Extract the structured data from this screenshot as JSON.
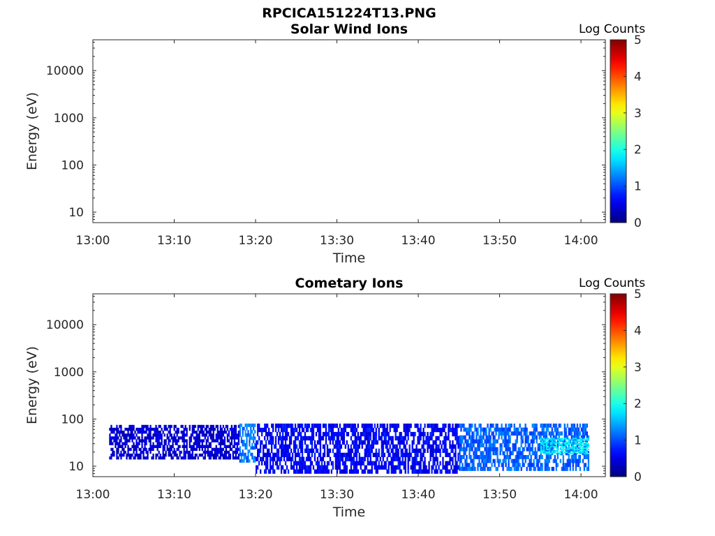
{
  "figure": {
    "title": "RPCICA151224T13.PNG"
  },
  "chart_data": [
    {
      "type": "heatmap",
      "title": "Solar Wind Ions",
      "xlabel": "Time",
      "ylabel": "Energy (eV)",
      "x_ticks": [
        "13:00",
        "13:10",
        "13:20",
        "13:30",
        "13:40",
        "13:50",
        "14:00"
      ],
      "xlim": [
        "13:00",
        "14:03"
      ],
      "y_scale": "log",
      "y_ticks": [
        "10",
        "100",
        "1000",
        "10000"
      ],
      "ylim": [
        6,
        45000
      ],
      "colorbar": {
        "label": "Log Counts",
        "ticks": [
          "0",
          "1",
          "2",
          "3",
          "4",
          "5"
        ],
        "range": [
          0,
          5
        ],
        "colormap": "jet"
      },
      "data_regions": []
    },
    {
      "type": "heatmap",
      "title": "Cometary Ions",
      "xlabel": "Time",
      "ylabel": "Energy (eV)",
      "x_ticks": [
        "13:00",
        "13:10",
        "13:20",
        "13:30",
        "13:40",
        "13:50",
        "14:00"
      ],
      "xlim": [
        "13:00",
        "14:03"
      ],
      "y_scale": "log",
      "y_ticks": [
        "10",
        "100",
        "1000",
        "10000"
      ],
      "ylim": [
        6,
        45000
      ],
      "colorbar": {
        "label": "Log Counts",
        "ticks": [
          "0",
          "1",
          "2",
          "3",
          "4",
          "5"
        ],
        "range": [
          0,
          5
        ],
        "colormap": "jet"
      },
      "data_regions": [
        {
          "start": "13:02",
          "end": "13:18",
          "e_min": 14,
          "e_max": 75,
          "log_counts": 0.4
        },
        {
          "start": "13:18",
          "end": "13:20",
          "e_min": 12,
          "e_max": 80,
          "log_counts": 1.2
        },
        {
          "start": "13:20",
          "end": "13:45",
          "e_min": 7,
          "e_max": 80,
          "log_counts": 0.6
        },
        {
          "start": "13:45",
          "end": "14:01",
          "e_min": 8,
          "e_max": 80,
          "log_counts": 1.1
        },
        {
          "start": "13:55",
          "end": "14:01",
          "e_min": 18,
          "e_max": 40,
          "log_counts": 1.8
        }
      ]
    }
  ]
}
